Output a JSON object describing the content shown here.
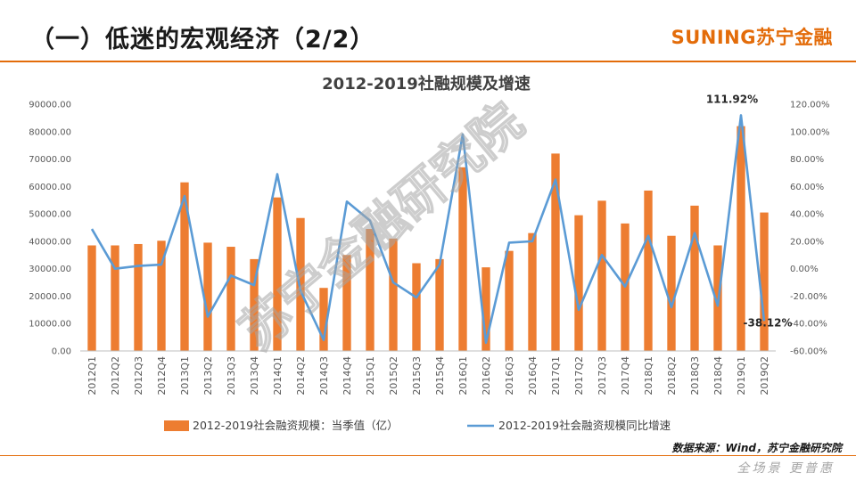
{
  "header": {
    "title": "（一）低迷的宏观经济（2/2）",
    "brand": "SUNING苏宁金融"
  },
  "watermark": "苏宁金融研究院",
  "source": "数据来源：Wind，苏宁金融研究院",
  "footer_mark": "全场景 更普惠",
  "colors": {
    "bar": "#ed7d31",
    "line": "#5b9bd5",
    "accent": "#e36c0a"
  },
  "chart_data": {
    "type": "bar",
    "title": "2012-2019社融规模及增速",
    "categories": [
      "2012Q1",
      "2012Q2",
      "2012Q3",
      "2012Q4",
      "2013Q1",
      "2013Q2",
      "2013Q3",
      "2013Q4",
      "2014Q1",
      "2014Q2",
      "2014Q3",
      "2014Q4",
      "2015Q1",
      "2015Q2",
      "2015Q3",
      "2015Q4",
      "2016Q1",
      "2016Q2",
      "2016Q3",
      "2016Q4",
      "2017Q1",
      "2017Q2",
      "2017Q3",
      "2017Q4",
      "2018Q1",
      "2018Q2",
      "2018Q3",
      "2018Q4",
      "2019Q1",
      "2019Q2"
    ],
    "series": [
      {
        "name": "2012-2019社会融资规模：当季值（亿）",
        "type": "bar",
        "axis": "left",
        "values": [
          38500,
          38500,
          39000,
          40200,
          61500,
          39500,
          38000,
          33500,
          56000,
          48500,
          23000,
          35000,
          44500,
          41000,
          32000,
          33500,
          67000,
          30500,
          36500,
          43000,
          72000,
          49500,
          54800,
          46500,
          58500,
          42000,
          53000,
          38500,
          82000,
          50500
        ]
      },
      {
        "name": "2012-2019社会融资规模同比增速",
        "type": "line",
        "axis": "right",
        "values": [
          29,
          0,
          2,
          3,
          53,
          -35,
          -5,
          -12,
          69,
          -16,
          -52,
          49,
          35,
          -10,
          -21,
          3,
          98,
          -54,
          19,
          20,
          65,
          -30,
          10,
          -13,
          24,
          -28,
          26,
          -27,
          111.92,
          -38.12
        ]
      }
    ],
    "y_left": {
      "min": 0,
      "max": 90000,
      "ticks": [
        "0.00",
        "10000.00",
        "20000.00",
        "30000.00",
        "40000.00",
        "50000.00",
        "60000.00",
        "70000.00",
        "80000.00",
        "90000.00"
      ]
    },
    "y_right": {
      "min": -60,
      "max": 120,
      "ticks": [
        "-60.00%",
        "-40.00%",
        "-20.00%",
        "0.00%",
        "20.00%",
        "40.00%",
        "60.00%",
        "80.00%",
        "100.00%",
        "120.00%"
      ]
    },
    "annotations": [
      {
        "index": 28,
        "text": "111.92%"
      },
      {
        "index": 29,
        "text": "-38.12%"
      }
    ],
    "legend_position": "bottom",
    "grid": false
  }
}
